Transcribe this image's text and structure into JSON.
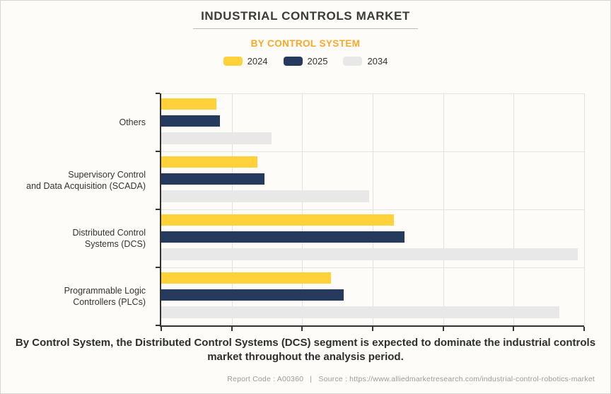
{
  "page": {
    "title": "INDUSTRIAL CONTROLS MARKET",
    "subtitle": "BY CONTROL SYSTEM",
    "summary": "By Control System, the Distributed Control Systems (DCS) segment is expected to dominate the industrial controls market throughout the analysis period.",
    "footer": {
      "report_code": "Report Code : A00360",
      "separator": "|",
      "source": "Source : https://www.alliedmarketresearch.com/industrial-control-robotics-market"
    }
  },
  "legend": [
    {
      "label": "2024",
      "color": "#ffd13a"
    },
    {
      "label": "2025",
      "color": "#253a5c"
    },
    {
      "label": "2034",
      "color": "#e8e8e8"
    }
  ],
  "chart_data": {
    "type": "bar",
    "orientation": "horizontal",
    "title": "INDUSTRIAL CONTROLS MARKET",
    "subtitle": "BY CONTROL SYSTEM",
    "xlabel": "",
    "ylabel": "",
    "legend_position": "top",
    "grid": true,
    "x_gridline_count": 6,
    "x_tick_labels_visible": false,
    "xlim_percent": [
      0,
      100
    ],
    "categories": [
      "Others",
      "Supervisory Control and Data Acquisition (SCADA)",
      "Distributed Control Systems (DCS)",
      "Programmable Logic Controllers (PLCs)"
    ],
    "categories_lines": [
      [
        "Others"
      ],
      [
        "Supervisory Control",
        "and Data Acquisition (SCADA)"
      ],
      [
        "Distributed Control",
        "Systems (DCS)"
      ],
      [
        "Programmable Logic",
        "Controllers (PLCs)"
      ]
    ],
    "series": [
      {
        "name": "2024",
        "color": "#ffd13a",
        "values_percent_of_axis": [
          13.0,
          22.7,
          55.0,
          40.1
        ]
      },
      {
        "name": "2025",
        "color": "#253a5c",
        "values_percent_of_axis": [
          13.9,
          24.4,
          57.5,
          43.1
        ]
      },
      {
        "name": "2034",
        "color": "#e8e8e8",
        "values_percent_of_axis": [
          26.1,
          49.2,
          98.5,
          94.2
        ]
      }
    ]
  }
}
